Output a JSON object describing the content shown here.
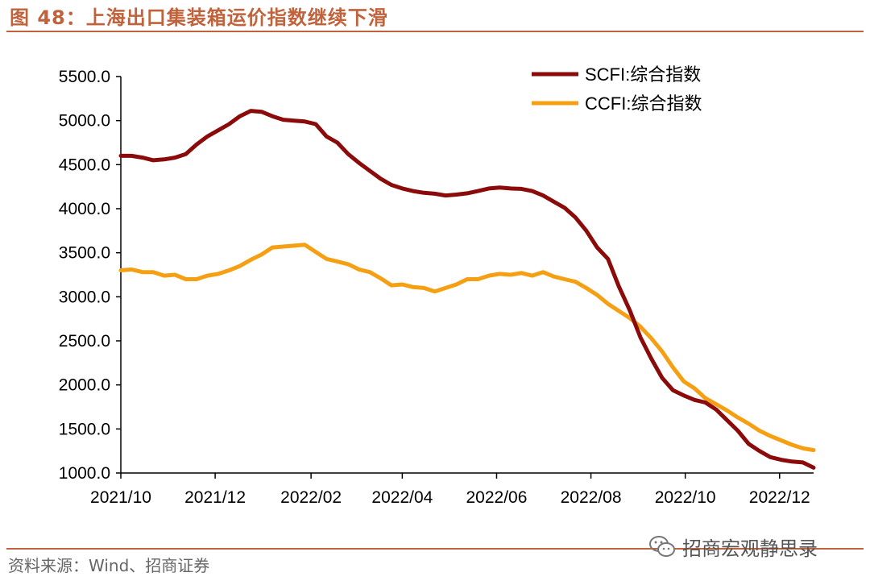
{
  "header": {
    "title": "图 48：上海出口集装箱运价指数继续下滑"
  },
  "footer": {
    "source": "资料来源：Wind、招商证券",
    "watermark": "招商宏观静思录",
    "watermark_icon": "wechat-icon"
  },
  "chart_data": {
    "type": "line",
    "title": "图 48：上海出口集装箱运价指数继续下滑",
    "xlabel": "",
    "ylabel": "",
    "ylim": [
      1000,
      5500
    ],
    "yticks": [
      1000,
      1500,
      2000,
      2500,
      3000,
      3500,
      4000,
      4500,
      5000,
      5500
    ],
    "ytick_labels": [
      "1000.0",
      "1500.0",
      "2000.0",
      "2500.0",
      "3000.0",
      "3500.0",
      "4000.0",
      "4500.0",
      "5000.0",
      "5500.0"
    ],
    "xticks": [
      "2021/10",
      "2021/12",
      "2022/02",
      "2022/04",
      "2022/06",
      "2022/08",
      "2022/10",
      "2022/12"
    ],
    "xtick_dates": [
      "2021-10-01",
      "2021-12-01",
      "2022-02-01",
      "2022-04-01",
      "2022-06-01",
      "2022-08-01",
      "2022-10-01",
      "2022-12-01"
    ],
    "xlim": [
      "2021-10-01",
      "2022-12-23"
    ],
    "grid": false,
    "legend": "top-right",
    "colors": {
      "SCFI:综合指数": "#8b0a0a",
      "CCFI:综合指数": "#f5a012",
      "axis": "#000000",
      "accent": "#c0623b"
    },
    "series": [
      {
        "name": "SCFI:综合指数",
        "x": [
          "2021-10-01",
          "2021-10-08",
          "2021-10-15",
          "2021-10-22",
          "2021-10-29",
          "2021-11-05",
          "2021-11-12",
          "2021-11-19",
          "2021-11-26",
          "2021-12-03",
          "2021-12-10",
          "2021-12-17",
          "2021-12-24",
          "2021-12-31",
          "2022-01-07",
          "2022-01-14",
          "2022-01-21",
          "2022-01-28",
          "2022-02-04",
          "2022-02-11",
          "2022-02-18",
          "2022-02-25",
          "2022-03-04",
          "2022-03-11",
          "2022-03-18",
          "2022-03-25",
          "2022-04-01",
          "2022-04-08",
          "2022-04-15",
          "2022-04-22",
          "2022-04-29",
          "2022-05-06",
          "2022-05-13",
          "2022-05-20",
          "2022-05-27",
          "2022-06-03",
          "2022-06-10",
          "2022-06-17",
          "2022-06-24",
          "2022-07-01",
          "2022-07-08",
          "2022-07-15",
          "2022-07-22",
          "2022-07-29",
          "2022-08-05",
          "2022-08-12",
          "2022-08-19",
          "2022-08-26",
          "2022-09-02",
          "2022-09-09",
          "2022-09-16",
          "2022-09-23",
          "2022-09-30",
          "2022-10-07",
          "2022-10-14",
          "2022-10-21",
          "2022-10-28",
          "2022-11-04",
          "2022-11-11",
          "2022-11-18",
          "2022-11-25",
          "2022-12-02",
          "2022-12-09",
          "2022-12-16",
          "2022-12-23"
        ],
        "values": [
          4600,
          4600,
          4580,
          4550,
          4560,
          4580,
          4620,
          4730,
          4820,
          4890,
          4960,
          5050,
          5110,
          5100,
          5050,
          5010,
          5000,
          4990,
          4960,
          4820,
          4750,
          4620,
          4520,
          4430,
          4340,
          4270,
          4230,
          4200,
          4180,
          4170,
          4150,
          4160,
          4175,
          4200,
          4230,
          4240,
          4230,
          4225,
          4200,
          4150,
          4080,
          4010,
          3900,
          3750,
          3560,
          3430,
          3120,
          2850,
          2540,
          2300,
          2080,
          1940,
          1880,
          1830,
          1800,
          1720,
          1600,
          1480,
          1330,
          1250,
          1180,
          1150,
          1130,
          1120,
          1060
        ]
      },
      {
        "name": "CCFI:综合指数",
        "x": [
          "2021-10-01",
          "2021-10-08",
          "2021-10-15",
          "2021-10-22",
          "2021-10-29",
          "2021-11-05",
          "2021-11-12",
          "2021-11-19",
          "2021-11-26",
          "2021-12-03",
          "2021-12-10",
          "2021-12-17",
          "2021-12-24",
          "2021-12-31",
          "2022-01-07",
          "2022-01-14",
          "2022-01-21",
          "2022-01-28",
          "2022-02-04",
          "2022-02-11",
          "2022-02-18",
          "2022-02-25",
          "2022-03-04",
          "2022-03-11",
          "2022-03-18",
          "2022-03-25",
          "2022-04-01",
          "2022-04-08",
          "2022-04-15",
          "2022-04-22",
          "2022-04-29",
          "2022-05-06",
          "2022-05-13",
          "2022-05-20",
          "2022-05-27",
          "2022-06-03",
          "2022-06-10",
          "2022-06-17",
          "2022-06-24",
          "2022-07-01",
          "2022-07-08",
          "2022-07-15",
          "2022-07-22",
          "2022-07-29",
          "2022-08-05",
          "2022-08-12",
          "2022-08-19",
          "2022-08-26",
          "2022-09-02",
          "2022-09-09",
          "2022-09-16",
          "2022-09-23",
          "2022-09-30",
          "2022-10-07",
          "2022-10-14",
          "2022-10-21",
          "2022-10-28",
          "2022-11-04",
          "2022-11-11",
          "2022-11-18",
          "2022-11-25",
          "2022-12-02",
          "2022-12-09",
          "2022-12-16",
          "2022-12-23"
        ],
        "values": [
          3300,
          3310,
          3280,
          3280,
          3240,
          3250,
          3200,
          3200,
          3240,
          3260,
          3300,
          3350,
          3420,
          3480,
          3560,
          3570,
          3580,
          3590,
          3510,
          3430,
          3400,
          3370,
          3310,
          3280,
          3210,
          3130,
          3140,
          3110,
          3100,
          3060,
          3100,
          3140,
          3200,
          3200,
          3240,
          3260,
          3250,
          3270,
          3240,
          3280,
          3230,
          3200,
          3170,
          3100,
          3020,
          2920,
          2840,
          2760,
          2660,
          2530,
          2380,
          2200,
          2040,
          1960,
          1850,
          1780,
          1710,
          1630,
          1560,
          1480,
          1420,
          1370,
          1320,
          1280,
          1260
        ]
      }
    ]
  }
}
